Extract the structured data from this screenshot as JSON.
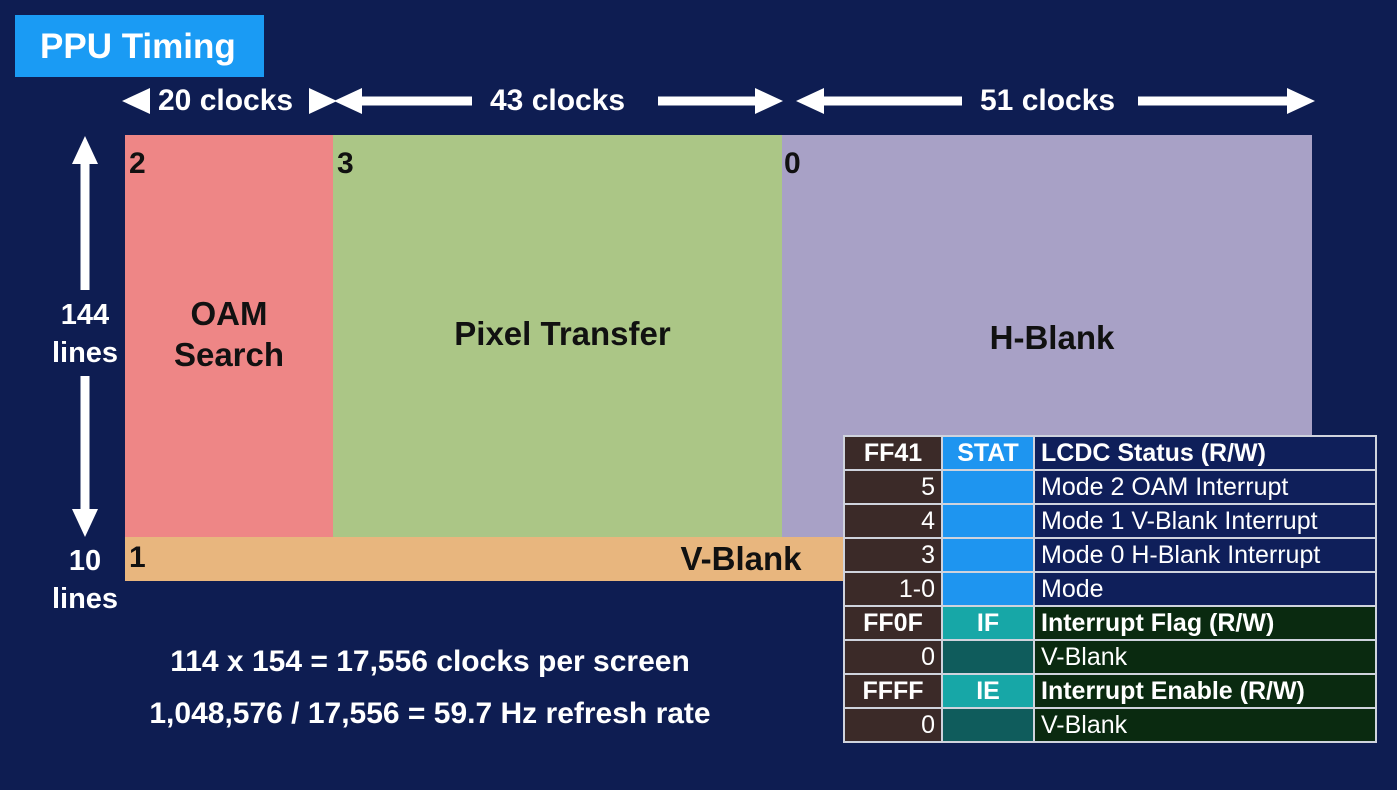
{
  "title": "PPU Timing",
  "clocks": {
    "oam": "20 clocks",
    "transfer": "43 clocks",
    "hblank": "51 clocks"
  },
  "side": {
    "visible": [
      "144",
      "lines"
    ],
    "vblank": [
      "10",
      "lines"
    ]
  },
  "modes": {
    "oam": {
      "num": "2",
      "label": [
        "OAM",
        "Search"
      ],
      "color": "#ee8686"
    },
    "transfer": {
      "num": "3",
      "label": "Pixel Transfer",
      "color": "#abc686"
    },
    "hblank": {
      "num": "0",
      "label": "H-Blank",
      "color": "#a8a1c6"
    },
    "vblank": {
      "num": "1",
      "label": "V-Blank",
      "color": "#e8b67e"
    }
  },
  "formulas": [
    "114 x 154 = 17,556 clocks per screen",
    "1,048,576 / 17,556 = 59.7 Hz refresh rate"
  ],
  "registers": {
    "stat": {
      "addr": "FF41",
      "mnemonic": "STAT",
      "name": "LCDC Status (R/W)",
      "bits": [
        {
          "bit": "5",
          "desc": "Mode 2 OAM Interrupt"
        },
        {
          "bit": "4",
          "desc": "Mode 1 V-Blank Interrupt"
        },
        {
          "bit": "3",
          "desc": "Mode 0 H-Blank Interrupt"
        },
        {
          "bit": "1-0",
          "desc": "Mode"
        }
      ]
    },
    "if": {
      "addr": "FF0F",
      "mnemonic": "IF",
      "name": "Interrupt Flag (R/W)",
      "bits": [
        {
          "bit": "0",
          "desc": "V-Blank"
        }
      ]
    },
    "ie": {
      "addr": "FFFF",
      "mnemonic": "IE",
      "name": "Interrupt Enable (R/W)",
      "bits": [
        {
          "bit": "0",
          "desc": "V-Blank"
        }
      ]
    }
  }
}
